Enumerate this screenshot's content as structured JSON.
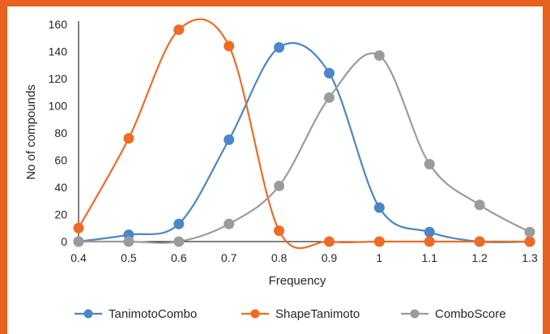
{
  "chart_data": {
    "type": "line",
    "title": "",
    "xlabel": "Frequency",
    "ylabel": "No of compounds",
    "x": [
      0.4,
      0.5,
      0.6,
      0.7,
      0.8,
      0.9,
      1,
      1.1,
      1.2,
      1.3
    ],
    "x_tick_labels": [
      "0.4",
      "0.5",
      "0.6",
      "0.7",
      "0.8",
      "0.9",
      "1",
      "1.1",
      "1.2",
      "1.3"
    ],
    "xlim": [
      0.4,
      1.3
    ],
    "ylim": [
      0,
      160
    ],
    "y_ticks": [
      0,
      20,
      40,
      60,
      80,
      100,
      120,
      140,
      160
    ],
    "grid": false,
    "legend_position": "bottom",
    "series": [
      {
        "name": "TanimotoCombo",
        "color": "#4a86c8",
        "values": [
          0,
          5,
          13,
          75,
          143,
          124,
          25,
          7,
          0,
          0
        ]
      },
      {
        "name": "ShapeTanimoto",
        "color": "#ef6b22",
        "values": [
          10,
          76,
          156,
          144,
          8,
          0,
          0,
          0,
          0,
          0
        ]
      },
      {
        "name": "ComboScore",
        "color": "#9b9b9b",
        "values": [
          0,
          0,
          0,
          13,
          41,
          106,
          137,
          57,
          27,
          7
        ]
      }
    ]
  },
  "style": {
    "border_color": "#e8611e",
    "axis_color": "#000000"
  }
}
